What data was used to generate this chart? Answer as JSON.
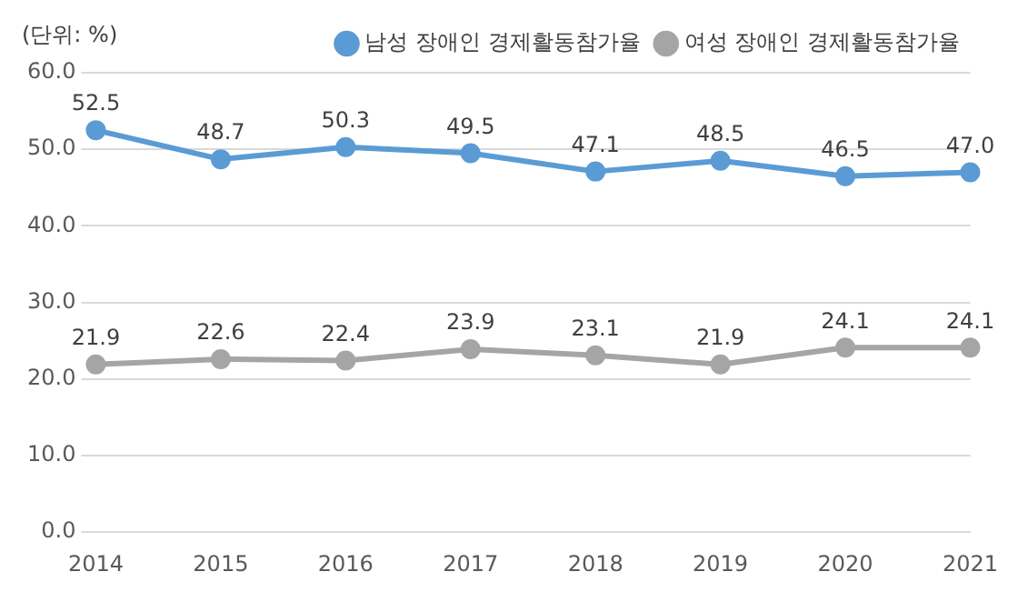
{
  "chart_data": {
    "type": "line",
    "annotations": [
      "(단위: %)"
    ],
    "categories": [
      "2014",
      "2015",
      "2016",
      "2017",
      "2018",
      "2019",
      "2020",
      "2021"
    ],
    "series": [
      {
        "name": "남성 장애인 경제활동참가율",
        "color": "#5b9bd5",
        "values": [
          52.5,
          48.7,
          50.3,
          49.5,
          47.1,
          48.5,
          46.5,
          47.0
        ],
        "value_labels": [
          "52.5",
          "48.7",
          "50.3",
          "49.5",
          "47.1",
          "48.5",
          "46.5",
          "47.0"
        ]
      },
      {
        "name": "여성 장애인 경제활동참가율",
        "color": "#a5a5a5",
        "values": [
          21.9,
          22.6,
          22.4,
          23.9,
          23.1,
          21.9,
          24.1,
          24.1
        ],
        "value_labels": [
          "21.9",
          "22.6",
          "22.4",
          "23.9",
          "23.1",
          "21.9",
          "24.1",
          "24.1"
        ]
      }
    ],
    "ylim": [
      0,
      60
    ],
    "yticks": [
      {
        "value": 0,
        "label": "0.0"
      },
      {
        "value": 10,
        "label": "10.0"
      },
      {
        "value": 20,
        "label": "20.0"
      },
      {
        "value": 30,
        "label": "30.0"
      },
      {
        "value": 40,
        "label": "40.0"
      },
      {
        "value": 50,
        "label": "50.0"
      },
      {
        "value": 60,
        "label": "60.0"
      }
    ],
    "grid": "y",
    "legend": "top",
    "marker": "circle",
    "line_style": "solid"
  }
}
